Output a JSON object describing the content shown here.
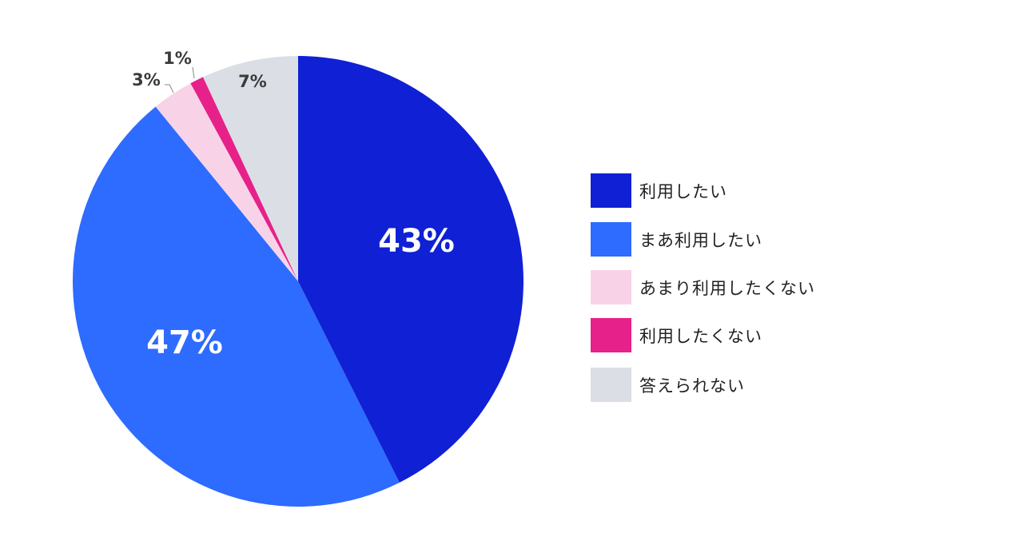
{
  "chart_data": {
    "type": "pie",
    "title": "",
    "categories": [
      "利用したい",
      "まあ利用したい",
      "あまり利用したくない",
      "利用したくない",
      "答えられない"
    ],
    "values": [
      43,
      47,
      3,
      1,
      7
    ],
    "labels": [
      "43%",
      "47%",
      "3%",
      "1%",
      "7%"
    ],
    "colors": [
      "#1020d4",
      "#2e6bff",
      "#f8d3e8",
      "#e6218a",
      "#dcdee6"
    ],
    "label_colors": [
      "#ffffff",
      "#ffffff",
      "#3a3a3a",
      "#3a3a3a",
      "#3a3a3a"
    ],
    "start_angle": "12 o'clock, clockwise",
    "legend_position": "right"
  },
  "legend": {
    "items": [
      {
        "label": "利用したい",
        "color": "#1020d4"
      },
      {
        "label": "まあ利用したい",
        "color": "#2e6bff"
      },
      {
        "label": "あまり利用したくない",
        "color": "#f8d3e8"
      },
      {
        "label": "利用したくない",
        "color": "#e6218a"
      },
      {
        "label": "答えられない",
        "color": "#dcdee6"
      }
    ]
  }
}
